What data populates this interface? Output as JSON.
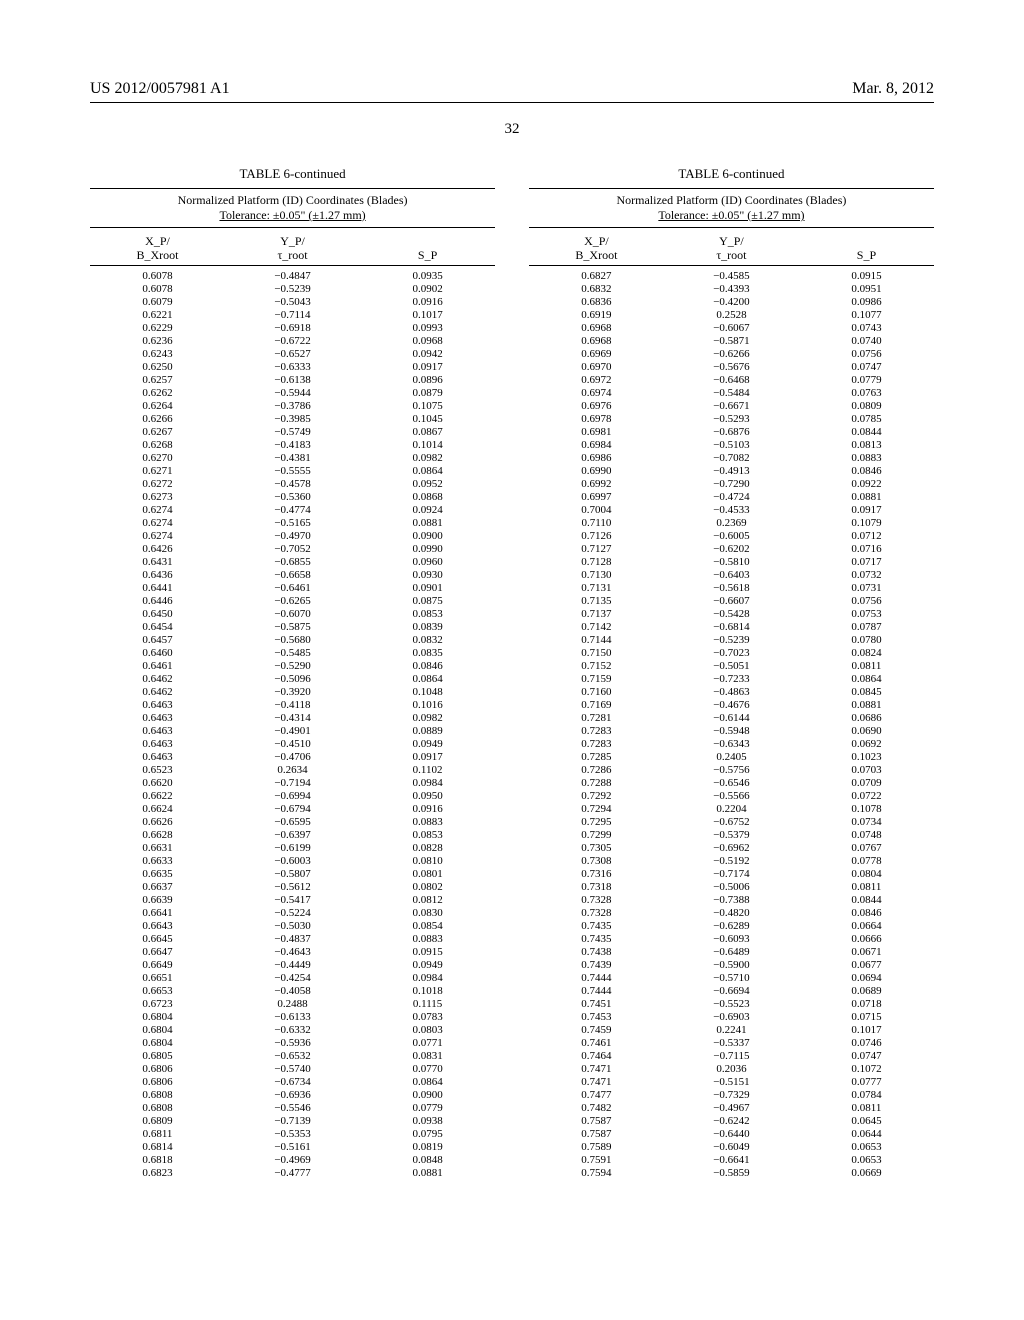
{
  "header": {
    "pubnum": "US 2012/0057981 A1",
    "date": "Mar. 8, 2012",
    "pagenum": "32"
  },
  "table": {
    "title": "TABLE 6-continued",
    "subtitle_line1": "Normalized Platform (ID) Coordinates (Blades)",
    "subtitle_line2": "Tolerance: ±0.05\" (±1.27 mm)",
    "head1_top": "X_P/",
    "head1_bot": "B_Xroot",
    "head2_top": "Y_P/",
    "head2_bot": "τ_root",
    "head3": "S_P"
  },
  "leftRows": [
    [
      "0.6078",
      "−0.4847",
      "0.0935"
    ],
    [
      "0.6078",
      "−0.5239",
      "0.0902"
    ],
    [
      "0.6079",
      "−0.5043",
      "0.0916"
    ],
    [
      "0.6221",
      "−0.7114",
      "0.1017"
    ],
    [
      "0.6229",
      "−0.6918",
      "0.0993"
    ],
    [
      "0.6236",
      "−0.6722",
      "0.0968"
    ],
    [
      "0.6243",
      "−0.6527",
      "0.0942"
    ],
    [
      "0.6250",
      "−0.6333",
      "0.0917"
    ],
    [
      "0.6257",
      "−0.6138",
      "0.0896"
    ],
    [
      "0.6262",
      "−0.5944",
      "0.0879"
    ],
    [
      "0.6264",
      "−0.3786",
      "0.1075"
    ],
    [
      "0.6266",
      "−0.3985",
      "0.1045"
    ],
    [
      "0.6267",
      "−0.5749",
      "0.0867"
    ],
    [
      "0.6268",
      "−0.4183",
      "0.1014"
    ],
    [
      "0.6270",
      "−0.4381",
      "0.0982"
    ],
    [
      "0.6271",
      "−0.5555",
      "0.0864"
    ],
    [
      "0.6272",
      "−0.4578",
      "0.0952"
    ],
    [
      "0.6273",
      "−0.5360",
      "0.0868"
    ],
    [
      "0.6274",
      "−0.4774",
      "0.0924"
    ],
    [
      "0.6274",
      "−0.5165",
      "0.0881"
    ],
    [
      "0.6274",
      "−0.4970",
      "0.0900"
    ],
    [
      "0.6426",
      "−0.7052",
      "0.0990"
    ],
    [
      "0.6431",
      "−0.6855",
      "0.0960"
    ],
    [
      "0.6436",
      "−0.6658",
      "0.0930"
    ],
    [
      "0.6441",
      "−0.6461",
      "0.0901"
    ],
    [
      "0.6446",
      "−0.6265",
      "0.0875"
    ],
    [
      "0.6450",
      "−0.6070",
      "0.0853"
    ],
    [
      "0.6454",
      "−0.5875",
      "0.0839"
    ],
    [
      "0.6457",
      "−0.5680",
      "0.0832"
    ],
    [
      "0.6460",
      "−0.5485",
      "0.0835"
    ],
    [
      "0.6461",
      "−0.5290",
      "0.0846"
    ],
    [
      "0.6462",
      "−0.5096",
      "0.0864"
    ],
    [
      "0.6462",
      "−0.3920",
      "0.1048"
    ],
    [
      "0.6463",
      "−0.4118",
      "0.1016"
    ],
    [
      "0.6463",
      "−0.4314",
      "0.0982"
    ],
    [
      "0.6463",
      "−0.4901",
      "0.0889"
    ],
    [
      "0.6463",
      "−0.4510",
      "0.0949"
    ],
    [
      "0.6463",
      "−0.4706",
      "0.0917"
    ],
    [
      "0.6523",
      "0.2634",
      "0.1102"
    ],
    [
      "0.6620",
      "−0.7194",
      "0.0984"
    ],
    [
      "0.6622",
      "−0.6994",
      "0.0950"
    ],
    [
      "0.6624",
      "−0.6794",
      "0.0916"
    ],
    [
      "0.6626",
      "−0.6595",
      "0.0883"
    ],
    [
      "0.6628",
      "−0.6397",
      "0.0853"
    ],
    [
      "0.6631",
      "−0.6199",
      "0.0828"
    ],
    [
      "0.6633",
      "−0.6003",
      "0.0810"
    ],
    [
      "0.6635",
      "−0.5807",
      "0.0801"
    ],
    [
      "0.6637",
      "−0.5612",
      "0.0802"
    ],
    [
      "0.6639",
      "−0.5417",
      "0.0812"
    ],
    [
      "0.6641",
      "−0.5224",
      "0.0830"
    ],
    [
      "0.6643",
      "−0.5030",
      "0.0854"
    ],
    [
      "0.6645",
      "−0.4837",
      "0.0883"
    ],
    [
      "0.6647",
      "−0.4643",
      "0.0915"
    ],
    [
      "0.6649",
      "−0.4449",
      "0.0949"
    ],
    [
      "0.6651",
      "−0.4254",
      "0.0984"
    ],
    [
      "0.6653",
      "−0.4058",
      "0.1018"
    ],
    [
      "0.6723",
      "0.2488",
      "0.1115"
    ],
    [
      "0.6804",
      "−0.6133",
      "0.0783"
    ],
    [
      "0.6804",
      "−0.6332",
      "0.0803"
    ],
    [
      "0.6804",
      "−0.5936",
      "0.0771"
    ],
    [
      "0.6805",
      "−0.6532",
      "0.0831"
    ],
    [
      "0.6806",
      "−0.5740",
      "0.0770"
    ],
    [
      "0.6806",
      "−0.6734",
      "0.0864"
    ],
    [
      "0.6808",
      "−0.6936",
      "0.0900"
    ],
    [
      "0.6808",
      "−0.5546",
      "0.0779"
    ],
    [
      "0.6809",
      "−0.7139",
      "0.0938"
    ],
    [
      "0.6811",
      "−0.5353",
      "0.0795"
    ],
    [
      "0.6814",
      "−0.5161",
      "0.0819"
    ],
    [
      "0.6818",
      "−0.4969",
      "0.0848"
    ],
    [
      "0.6823",
      "−0.4777",
      "0.0881"
    ]
  ],
  "rightRows": [
    [
      "0.6827",
      "−0.4585",
      "0.0915"
    ],
    [
      "0.6832",
      "−0.4393",
      "0.0951"
    ],
    [
      "0.6836",
      "−0.4200",
      "0.0986"
    ],
    [
      "0.6919",
      "0.2528",
      "0.1077"
    ],
    [
      "0.6968",
      "−0.6067",
      "0.0743"
    ],
    [
      "0.6968",
      "−0.5871",
      "0.0740"
    ],
    [
      "0.6969",
      "−0.6266",
      "0.0756"
    ],
    [
      "0.6970",
      "−0.5676",
      "0.0747"
    ],
    [
      "0.6972",
      "−0.6468",
      "0.0779"
    ],
    [
      "0.6974",
      "−0.5484",
      "0.0763"
    ],
    [
      "0.6976",
      "−0.6671",
      "0.0809"
    ],
    [
      "0.6978",
      "−0.5293",
      "0.0785"
    ],
    [
      "0.6981",
      "−0.6876",
      "0.0844"
    ],
    [
      "0.6984",
      "−0.5103",
      "0.0813"
    ],
    [
      "0.6986",
      "−0.7082",
      "0.0883"
    ],
    [
      "0.6990",
      "−0.4913",
      "0.0846"
    ],
    [
      "0.6992",
      "−0.7290",
      "0.0922"
    ],
    [
      "0.6997",
      "−0.4724",
      "0.0881"
    ],
    [
      "0.7004",
      "−0.4533",
      "0.0917"
    ],
    [
      "0.7110",
      "0.2369",
      "0.1079"
    ],
    [
      "0.7126",
      "−0.6005",
      "0.0712"
    ],
    [
      "0.7127",
      "−0.6202",
      "0.0716"
    ],
    [
      "0.7128",
      "−0.5810",
      "0.0717"
    ],
    [
      "0.7130",
      "−0.6403",
      "0.0732"
    ],
    [
      "0.7131",
      "−0.5618",
      "0.0731"
    ],
    [
      "0.7135",
      "−0.6607",
      "0.0756"
    ],
    [
      "0.7137",
      "−0.5428",
      "0.0753"
    ],
    [
      "0.7142",
      "−0.6814",
      "0.0787"
    ],
    [
      "0.7144",
      "−0.5239",
      "0.0780"
    ],
    [
      "0.7150",
      "−0.7023",
      "0.0824"
    ],
    [
      "0.7152",
      "−0.5051",
      "0.0811"
    ],
    [
      "0.7159",
      "−0.7233",
      "0.0864"
    ],
    [
      "0.7160",
      "−0.4863",
      "0.0845"
    ],
    [
      "0.7169",
      "−0.4676",
      "0.0881"
    ],
    [
      "0.7281",
      "−0.6144",
      "0.0686"
    ],
    [
      "0.7283",
      "−0.5948",
      "0.0690"
    ],
    [
      "0.7283",
      "−0.6343",
      "0.0692"
    ],
    [
      "0.7285",
      "0.2405",
      "0.1023"
    ],
    [
      "0.7286",
      "−0.5756",
      "0.0703"
    ],
    [
      "0.7288",
      "−0.6546",
      "0.0709"
    ],
    [
      "0.7292",
      "−0.5566",
      "0.0722"
    ],
    [
      "0.7294",
      "0.2204",
      "0.1078"
    ],
    [
      "0.7295",
      "−0.6752",
      "0.0734"
    ],
    [
      "0.7299",
      "−0.5379",
      "0.0748"
    ],
    [
      "0.7305",
      "−0.6962",
      "0.0767"
    ],
    [
      "0.7308",
      "−0.5192",
      "0.0778"
    ],
    [
      "0.7316",
      "−0.7174",
      "0.0804"
    ],
    [
      "0.7318",
      "−0.5006",
      "0.0811"
    ],
    [
      "0.7328",
      "−0.7388",
      "0.0844"
    ],
    [
      "0.7328",
      "−0.4820",
      "0.0846"
    ],
    [
      "0.7435",
      "−0.6289",
      "0.0664"
    ],
    [
      "0.7435",
      "−0.6093",
      "0.0666"
    ],
    [
      "0.7438",
      "−0.6489",
      "0.0671"
    ],
    [
      "0.7439",
      "−0.5900",
      "0.0677"
    ],
    [
      "0.7444",
      "−0.5710",
      "0.0694"
    ],
    [
      "0.7444",
      "−0.6694",
      "0.0689"
    ],
    [
      "0.7451",
      "−0.5523",
      "0.0718"
    ],
    [
      "0.7453",
      "−0.6903",
      "0.0715"
    ],
    [
      "0.7459",
      "0.2241",
      "0.1017"
    ],
    [
      "0.7461",
      "−0.5337",
      "0.0746"
    ],
    [
      "0.7464",
      "−0.7115",
      "0.0747"
    ],
    [
      "0.7471",
      "0.2036",
      "0.1072"
    ],
    [
      "0.7471",
      "−0.5151",
      "0.0777"
    ],
    [
      "0.7477",
      "−0.7329",
      "0.0784"
    ],
    [
      "0.7482",
      "−0.4967",
      "0.0811"
    ],
    [
      "0.7587",
      "−0.6242",
      "0.0645"
    ],
    [
      "0.7587",
      "−0.6440",
      "0.0644"
    ],
    [
      "0.7589",
      "−0.6049",
      "0.0653"
    ],
    [
      "0.7591",
      "−0.6641",
      "0.0653"
    ],
    [
      "0.7594",
      "−0.5859",
      "0.0669"
    ]
  ]
}
